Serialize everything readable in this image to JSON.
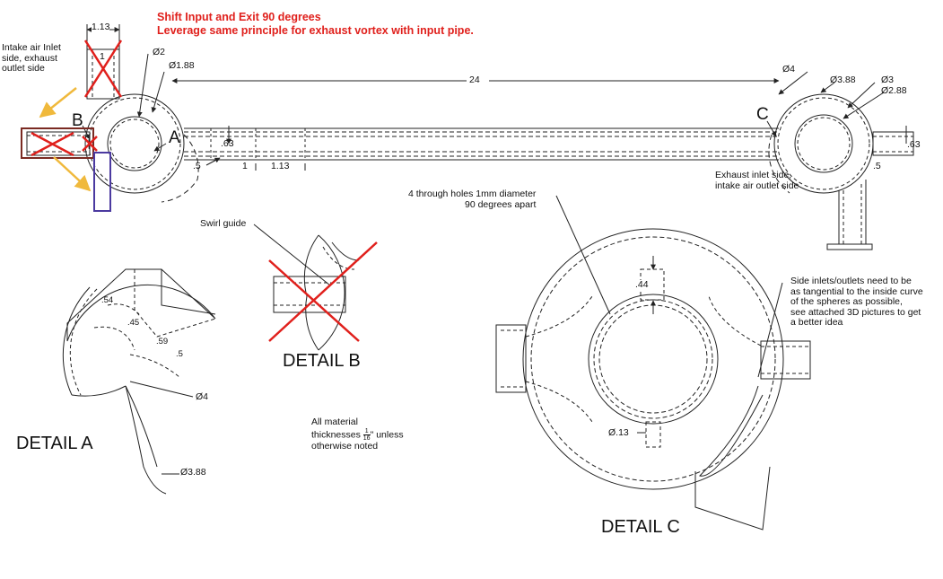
{
  "notes": {
    "line1": "Shift Input and Exit 90 degrees",
    "line2": "Leverage same principle for exhaust vortex with input pipe."
  },
  "labels": {
    "intake_side": "Intake air Inlet\nside, exhaust\noutlet side",
    "exhaust_side": "Exhaust inlet side,\nintake air outlet side",
    "swirl_guide": "Swirl guide",
    "through_holes": "4 through holes 1mm diameter\n90 degrees apart",
    "side_inlets": "Side inlets/outlets need to be\nas tangential to the inside curve\nof the spheres as possible,\nsee attached 3D pictures to get\na better idea",
    "material_pre": "All material\nthicknesses ",
    "material_frac_num": "1",
    "material_frac_den": "16",
    "material_post": "\" unless\notherwise noted"
  },
  "dimensions": {
    "d113_top": "1.13",
    "d1_box": "1",
    "d2": "Ø2",
    "d188": "Ø1.88",
    "d24": "24",
    "d63_left": ".63",
    "d5_left": ".5",
    "d1_bottom": "1",
    "d113_bottom": "1.13",
    "d4_right": "Ø4",
    "d388_right": "Ø3.88",
    "d3_right": "Ø3",
    "d288_right": "Ø2.88",
    "d63_right": ".63",
    "d5_right": ".5",
    "a_54": ".54",
    "a_45": ".45",
    "a_59": ".59",
    "a_5": ".5",
    "a_d4": "Ø4",
    "a_d388": "Ø3.88",
    "c_44": ".44",
    "c_13": "Ø.13"
  },
  "callouts": {
    "A": "A",
    "B": "B",
    "C": "C"
  },
  "details": {
    "A": "DETAIL A",
    "B": "DETAIL B",
    "C": "DETAIL C"
  },
  "colors": {
    "annotation_red": "#e0201c",
    "arrow_orange": "#f0b93c",
    "box_brown": "#7a2a22",
    "box_purple": "#4b3aa0",
    "line": "#222222"
  }
}
